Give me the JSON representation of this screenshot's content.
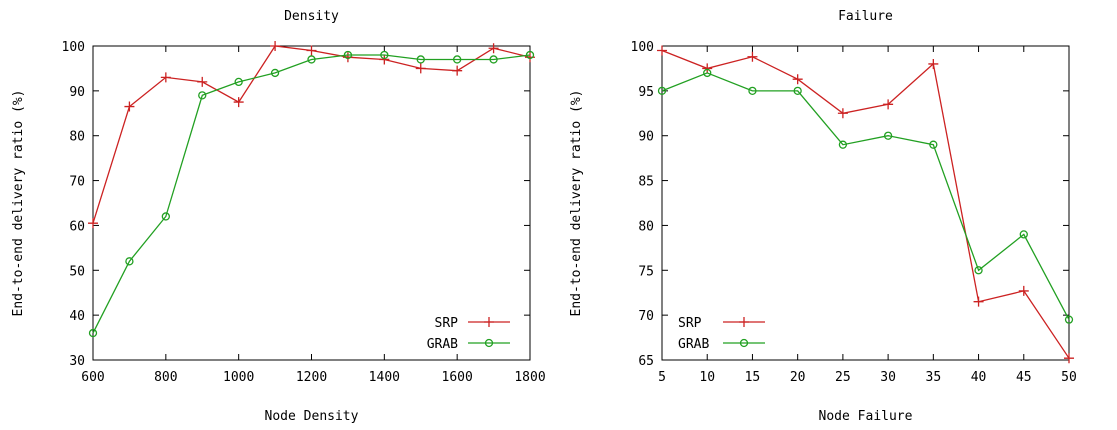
{
  "chart_data": [
    {
      "type": "line",
      "title": "Density",
      "xlabel": "Node Density",
      "ylabel": "End-to-end delivery ratio (%)",
      "xlim": [
        600,
        1800
      ],
      "ylim": [
        30,
        100
      ],
      "xticks": [
        600,
        800,
        1000,
        1200,
        1400,
        1600,
        1800
      ],
      "yticks": [
        30,
        40,
        50,
        60,
        70,
        80,
        90,
        100
      ],
      "grid": false,
      "legend_position": "bottom-right",
      "series": [
        {
          "name": "SRP",
          "color": "#cc2222",
          "marker": "plus",
          "x": [
            600,
            700,
            800,
            900,
            1000,
            1100,
            1200,
            1300,
            1400,
            1500,
            1600,
            1700,
            1800
          ],
          "y": [
            60.5,
            86.5,
            93,
            92,
            87.5,
            100,
            99,
            97.5,
            97,
            95,
            94.5,
            99.5,
            97.5
          ]
        },
        {
          "name": "GRAB",
          "color": "#22a022",
          "marker": "circle",
          "x": [
            600,
            700,
            800,
            900,
            1000,
            1100,
            1200,
            1300,
            1400,
            1500,
            1600,
            1700,
            1800
          ],
          "y": [
            36,
            52,
            62,
            89,
            92,
            94,
            97,
            98,
            98,
            97,
            97,
            97,
            98
          ]
        }
      ]
    },
    {
      "type": "line",
      "title": "Failure",
      "xlabel": "Node Failure",
      "ylabel": "End-to-end delivery ratio (%)",
      "xlim": [
        5,
        50
      ],
      "ylim": [
        65,
        100
      ],
      "xticks": [
        5,
        10,
        15,
        20,
        25,
        30,
        35,
        40,
        45,
        50
      ],
      "yticks": [
        65,
        70,
        75,
        80,
        85,
        90,
        95,
        100
      ],
      "grid": false,
      "legend_position": "bottom-left",
      "series": [
        {
          "name": "SRP",
          "color": "#cc2222",
          "marker": "plus",
          "x": [
            5,
            10,
            15,
            20,
            25,
            30,
            35,
            40,
            45,
            50
          ],
          "y": [
            99.5,
            97.5,
            98.8,
            96.3,
            92.5,
            93.5,
            98,
            71.5,
            72.7,
            65.2
          ]
        },
        {
          "name": "GRAB",
          "color": "#22a022",
          "marker": "circle",
          "x": [
            5,
            10,
            15,
            20,
            25,
            30,
            35,
            40,
            45,
            50
          ],
          "y": [
            95,
            97,
            95,
            95,
            89,
            90,
            89,
            75,
            79,
            69.5
          ]
        }
      ]
    }
  ]
}
